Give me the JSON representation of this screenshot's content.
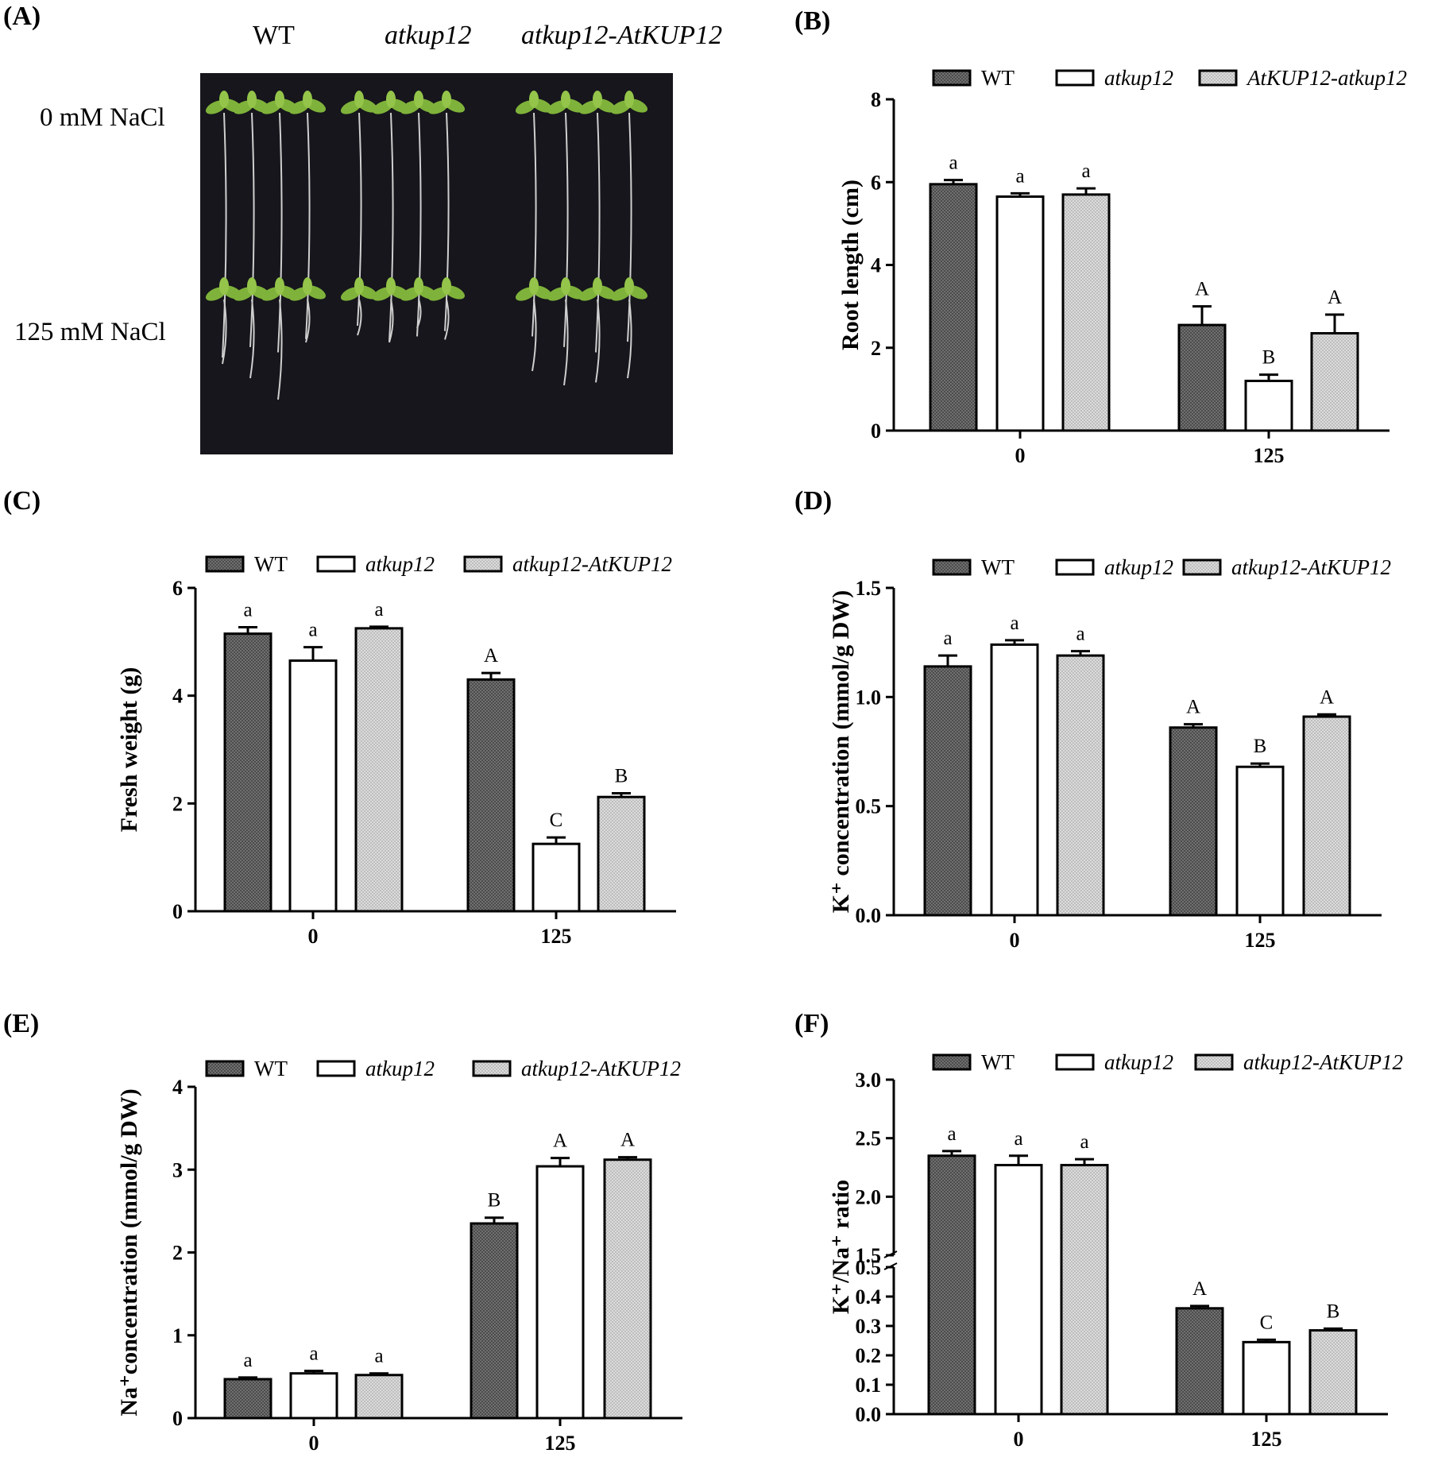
{
  "panel_labels": [
    "(A)",
    "(B)",
    "(C)",
    "(D)",
    "(E)",
    "(F)"
  ],
  "photo": {
    "col_headers": [
      "WT",
      "atkup12",
      "atkup12-AtKUP12"
    ],
    "row_labels": [
      "0 mM NaCl",
      "125 mM NaCl"
    ],
    "seedlings": [
      {
        "row": 0,
        "group": 0,
        "roots": [
          0.92,
          0.88,
          0.9,
          0.85
        ]
      },
      {
        "row": 0,
        "group": 1,
        "roots": [
          0.8,
          0.86,
          0.84,
          0.82
        ]
      },
      {
        "row": 0,
        "group": 2,
        "roots": [
          0.84,
          0.88,
          0.9,
          0.86
        ]
      },
      {
        "row": 1,
        "group": 0,
        "roots": [
          0.45,
          0.55,
          0.7,
          0.3
        ]
      },
      {
        "row": 1,
        "group": 1,
        "roots": [
          0.25,
          0.3,
          0.2,
          0.28
        ]
      },
      {
        "row": 1,
        "group": 2,
        "roots": [
          0.5,
          0.6,
          0.58,
          0.55
        ]
      }
    ]
  },
  "colors": {
    "wt_fill": "#6e6e6e",
    "mutant_fill": "#ffffff",
    "comp_fill": "#d3d3d3",
    "photo_bg": "#16161c",
    "leaf": "#7fb23a"
  },
  "chart_data": [
    {
      "id": "B",
      "type": "bar",
      "categories": [
        "0",
        "125"
      ],
      "ylabel": "Root length (cm)",
      "ylim": [
        0,
        8
      ],
      "yticks": [
        "0",
        "2",
        "4",
        "6",
        "8"
      ],
      "series": [
        {
          "name": "WT",
          "values": [
            5.95,
            2.55
          ],
          "errors": [
            0.1,
            0.45
          ],
          "letters": [
            "a",
            "A"
          ]
        },
        {
          "name": "atkup12",
          "values": [
            5.65,
            1.2
          ],
          "errors": [
            0.08,
            0.15
          ],
          "letters": [
            "a",
            "B"
          ]
        },
        {
          "name": "AtKUP12-atkup12",
          "values": [
            5.7,
            2.35
          ],
          "errors": [
            0.15,
            0.45
          ],
          "letters": [
            "a",
            "A"
          ]
        }
      ]
    },
    {
      "id": "C",
      "type": "bar",
      "categories": [
        "0",
        "125"
      ],
      "ylabel": "Fresh weight (g)",
      "ylim": [
        0,
        6
      ],
      "yticks": [
        "0",
        "2",
        "4",
        "6"
      ],
      "series": [
        {
          "name": "WT",
          "values": [
            5.15,
            4.3
          ],
          "errors": [
            0.12,
            0.12
          ],
          "letters": [
            "a",
            "A"
          ]
        },
        {
          "name": "atkup12",
          "values": [
            4.65,
            1.25
          ],
          "errors": [
            0.25,
            0.12
          ],
          "letters": [
            "a",
            "C"
          ]
        },
        {
          "name": "atkup12-AtKUP12",
          "values": [
            5.25,
            2.12
          ],
          "errors": [
            0.03,
            0.07
          ],
          "letters": [
            "a",
            "B"
          ]
        }
      ]
    },
    {
      "id": "D",
      "type": "bar",
      "categories": [
        "0",
        "125"
      ],
      "ylabel": "K⁺ concentration (mmol/g DW)",
      "ylim": [
        0,
        1.5
      ],
      "yticks": [
        "0.0",
        "0.5",
        "1.0",
        "1.5"
      ],
      "series": [
        {
          "name": "WT",
          "values": [
            1.14,
            0.86
          ],
          "errors": [
            0.05,
            0.015
          ],
          "letters": [
            "a",
            "A"
          ]
        },
        {
          "name": "atkup12",
          "values": [
            1.24,
            0.68
          ],
          "errors": [
            0.02,
            0.015
          ],
          "letters": [
            "a",
            "B"
          ]
        },
        {
          "name": "atkup12-AtKUP12",
          "values": [
            1.19,
            0.91
          ],
          "errors": [
            0.02,
            0.01
          ],
          "letters": [
            "a",
            "A"
          ]
        }
      ]
    },
    {
      "id": "E",
      "type": "bar",
      "categories": [
        "0",
        "125"
      ],
      "ylabel": "Na⁺concentration (mmol/g DW)",
      "ylim": [
        0,
        4
      ],
      "yticks": [
        "0",
        "1",
        "2",
        "3",
        "4"
      ],
      "series": [
        {
          "name": "WT",
          "values": [
            0.47,
            2.35
          ],
          "errors": [
            0.02,
            0.07
          ],
          "letters": [
            "a",
            "B"
          ]
        },
        {
          "name": "atkup12",
          "values": [
            0.54,
            3.04
          ],
          "errors": [
            0.03,
            0.1
          ],
          "letters": [
            "a",
            "A"
          ]
        },
        {
          "name": "atkup12-AtKUP12",
          "values": [
            0.52,
            3.12
          ],
          "errors": [
            0.02,
            0.03
          ],
          "letters": [
            "a",
            "A"
          ]
        }
      ]
    },
    {
      "id": "F",
      "type": "bar",
      "categories": [
        "0",
        "125"
      ],
      "ylabel": "K⁺/Na⁺ ratio",
      "axis_break": {
        "lower": [
          0,
          0.5
        ],
        "upper": [
          1.5,
          3.0
        ]
      },
      "yticks_lower": [
        "0.0",
        "0.1",
        "0.2",
        "0.3",
        "0.4",
        "0.5"
      ],
      "yticks_upper": [
        "1.5",
        "2.0",
        "2.5",
        "3.0"
      ],
      "series": [
        {
          "name": "WT",
          "values": [
            2.35,
            0.36
          ],
          "errors": [
            0.04,
            0.008
          ],
          "letters": [
            "a",
            "A"
          ]
        },
        {
          "name": "atkup12",
          "values": [
            2.27,
            0.245
          ],
          "errors": [
            0.08,
            0.008
          ],
          "letters": [
            "a",
            "C"
          ]
        },
        {
          "name": "atkup12-AtKUP12",
          "values": [
            2.27,
            0.285
          ],
          "errors": [
            0.05,
            0.006
          ],
          "letters": [
            "a",
            "B"
          ]
        }
      ]
    }
  ]
}
